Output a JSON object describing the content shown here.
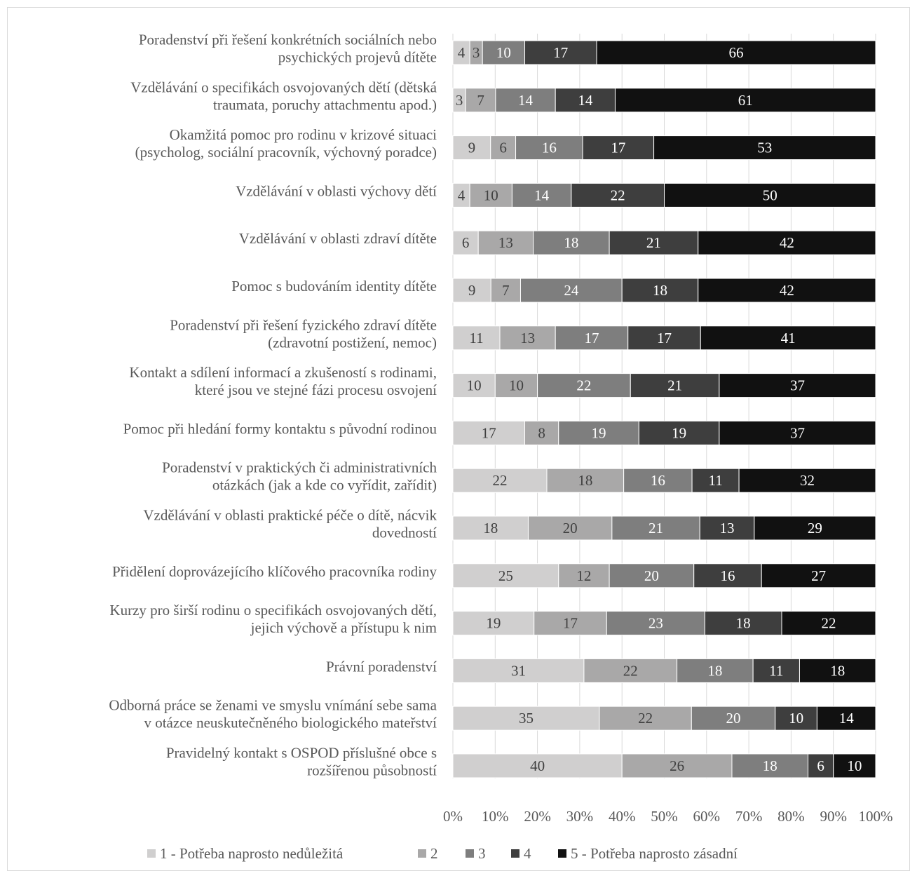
{
  "chart_data": {
    "type": "bar",
    "orientation": "horizontal",
    "stacked": "percent",
    "title": "",
    "xlabel": "",
    "ylabel": "",
    "xlim": [
      0,
      100
    ],
    "x_ticks": [
      "0%",
      "10%",
      "20%",
      "30%",
      "40%",
      "50%",
      "60%",
      "70%",
      "80%",
      "90%",
      "100%"
    ],
    "grid": true,
    "legend_position": "bottom",
    "categories": [
      "Poradenství při řešení konkrétních sociálních nebo psychických projevů dítěte",
      "Vzdělávání o specifikách osvojovaných dětí (dětská traumata, poruchy attachmentu apod.)",
      "Okamžitá pomoc pro rodinu v krizové situaci (psycholog, sociální pracovník, výchovný poradce)",
      "Vzdělávání v oblasti výchovy dětí",
      "Vzdělávání v oblasti zdraví dítěte",
      "Pomoc s budováním identity dítěte",
      "Poradenství při řešení fyzického zdraví dítěte (zdravotní postižení, nemoc)",
      "Kontakt a sdílení informací a zkušeností s rodinami, které jsou ve stejné fázi procesu osvojení",
      "Pomoc při hledání formy kontaktu s původní rodinou",
      "Poradenství v praktických či administrativních otázkách (jak a kde co vyřídit, zařídit)",
      "Vzdělávání v oblasti praktické péče o dítě, nácvik dovedností",
      "Přidělení doprovázejícího klíčového pracovníka rodiny",
      "Kurzy pro širší rodinu o specifikách osvojovaných dětí, jejich výchově a přístupu k nim",
      "Právní poradenství",
      "Odborná práce se ženami ve smyslu vnímání sebe sama v otázce neuskutečněného biologického mateřství",
      "Pravidelný kontakt s OSPOD příslušné obce s rozšířenou působností"
    ],
    "series": [
      {
        "name": "1 - Potřeba naprosto nedůležitá",
        "color": "#d0cfcf",
        "values": [
          4,
          3,
          9,
          4,
          6,
          9,
          11,
          10,
          17,
          22,
          18,
          25,
          19,
          31,
          35,
          40
        ]
      },
      {
        "name": "2",
        "color": "#a9a8a8",
        "values": [
          3,
          7,
          6,
          10,
          13,
          7,
          13,
          10,
          8,
          18,
          20,
          12,
          17,
          22,
          22,
          26
        ]
      },
      {
        "name": "3",
        "color": "#7e7e7e",
        "values": [
          10,
          14,
          16,
          14,
          18,
          24,
          17,
          22,
          19,
          16,
          21,
          20,
          23,
          18,
          20,
          18
        ]
      },
      {
        "name": "4",
        "color": "#3e3e3e",
        "values": [
          17,
          14,
          17,
          22,
          21,
          18,
          17,
          21,
          19,
          11,
          13,
          16,
          18,
          11,
          10,
          6
        ]
      },
      {
        "name": "5 - Potřeba naprosto zásadní",
        "color": "#111111",
        "values": [
          66,
          61,
          53,
          50,
          42,
          42,
          41,
          37,
          37,
          32,
          29,
          27,
          22,
          18,
          14,
          10
        ]
      }
    ]
  }
}
